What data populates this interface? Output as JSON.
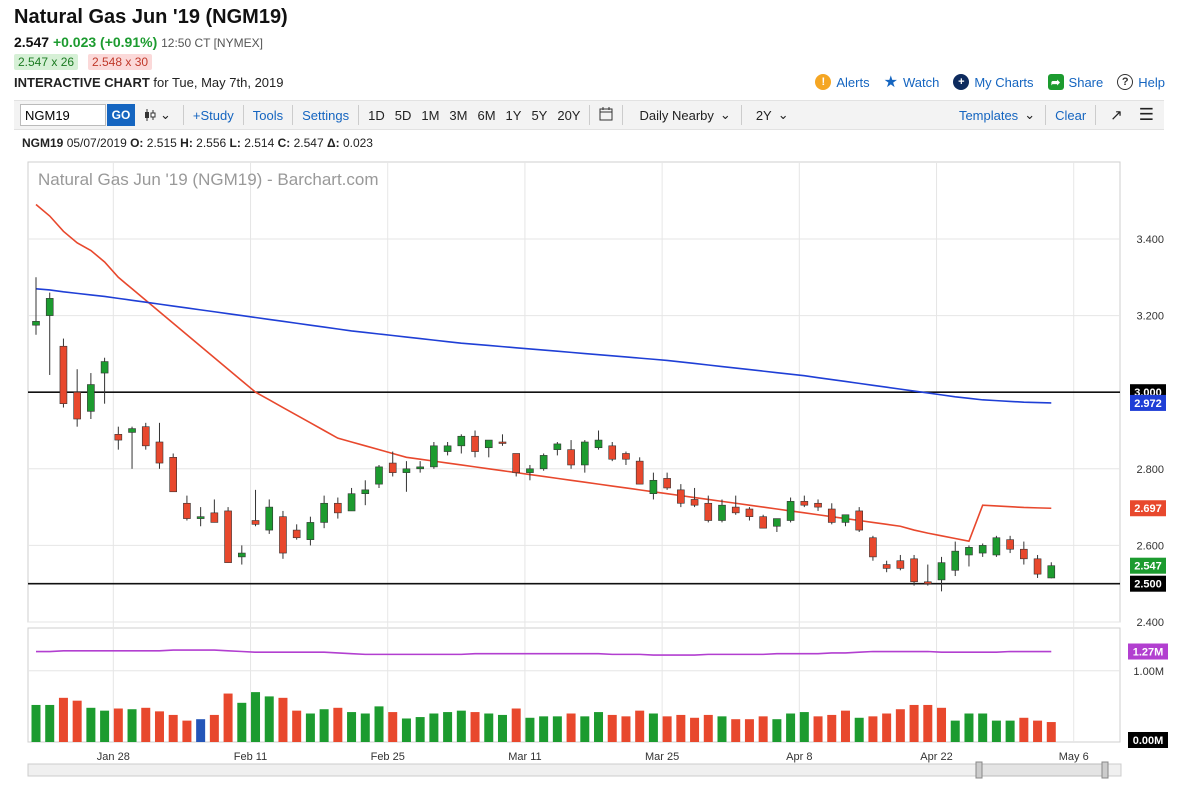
{
  "header": {
    "title": "Natural Gas Jun '19 (NGM19)",
    "last": "2.547",
    "change": "+0.023 (+0.91%)",
    "time": "12:50 CT [NYMEX]",
    "bid": "2.547 x 26",
    "ask": "2.548 x 30",
    "ic_label": "INTERACTIVE CHART",
    "ic_date": "for Tue, May 7th, 2019"
  },
  "links": {
    "alerts": "Alerts",
    "watch": "Watch",
    "mycharts": "My Charts",
    "share": "Share",
    "help": "Help"
  },
  "toolbar": {
    "symbol": "NGM19",
    "go": "GO",
    "study": "+Study",
    "tools": "Tools",
    "settings": "Settings",
    "periods": [
      "1D",
      "5D",
      "1M",
      "3M",
      "6M",
      "1Y",
      "5Y",
      "20Y"
    ],
    "interval": "Daily Nearby",
    "range": "2Y",
    "templates": "Templates",
    "clear": "Clear"
  },
  "ohlc": {
    "symbol": "NGM19",
    "date": "05/07/2019",
    "o_label": "O:",
    "o": "2.515",
    "h_label": "H:",
    "h": "2.556",
    "l_label": "L:",
    "l": "2.514",
    "c_label": "C:",
    "c": "2.547",
    "d_label": "Δ:",
    "d": "0.023"
  },
  "chart_data": {
    "type": "candlestick",
    "title": "Natural Gas Jun '19 (NGM19) - Barchart.com",
    "ylim": [
      2.38,
      3.5
    ],
    "y_ticks": [
      "3.400",
      "3.200",
      "2.800",
      "2.600",
      "2.400"
    ],
    "x_ticks": [
      "Jan 28",
      "Feb 11",
      "Feb 25",
      "Mar 11",
      "Mar 25",
      "Apr 8",
      "Apr 22",
      "May 6"
    ],
    "x_tick_index": [
      6,
      16,
      26,
      36,
      46,
      56,
      66,
      76
    ],
    "candles": [
      {
        "o": 3.175,
        "h": 3.3,
        "l": 3.15,
        "c": 3.185
      },
      {
        "o": 3.2,
        "h": 3.26,
        "l": 3.045,
        "c": 3.245
      },
      {
        "o": 3.12,
        "h": 3.14,
        "l": 2.96,
        "c": 2.97
      },
      {
        "o": 3.0,
        "h": 3.06,
        "l": 2.91,
        "c": 2.93
      },
      {
        "o": 2.95,
        "h": 3.05,
        "l": 2.93,
        "c": 3.02
      },
      {
        "o": 3.05,
        "h": 3.09,
        "l": 2.97,
        "c": 3.08
      },
      {
        "o": 2.89,
        "h": 2.91,
        "l": 2.85,
        "c": 2.875
      },
      {
        "o": 2.895,
        "h": 2.91,
        "l": 2.8,
        "c": 2.905
      },
      {
        "o": 2.91,
        "h": 2.92,
        "l": 2.85,
        "c": 2.86
      },
      {
        "o": 2.87,
        "h": 2.92,
        "l": 2.8,
        "c": 2.815
      },
      {
        "o": 2.83,
        "h": 2.84,
        "l": 2.74,
        "c": 2.74
      },
      {
        "o": 2.71,
        "h": 2.73,
        "l": 2.665,
        "c": 2.67
      },
      {
        "o": 2.67,
        "h": 2.7,
        "l": 2.65,
        "c": 2.675
      },
      {
        "o": 2.685,
        "h": 2.72,
        "l": 2.66,
        "c": 2.66
      },
      {
        "o": 2.69,
        "h": 2.7,
        "l": 2.555,
        "c": 2.555
      },
      {
        "o": 2.57,
        "h": 2.6,
        "l": 2.55,
        "c": 2.58
      },
      {
        "o": 2.665,
        "h": 2.745,
        "l": 2.65,
        "c": 2.655
      },
      {
        "o": 2.64,
        "h": 2.72,
        "l": 2.63,
        "c": 2.7
      },
      {
        "o": 2.675,
        "h": 2.69,
        "l": 2.565,
        "c": 2.58
      },
      {
        "o": 2.64,
        "h": 2.655,
        "l": 2.615,
        "c": 2.62
      },
      {
        "o": 2.615,
        "h": 2.675,
        "l": 2.6,
        "c": 2.66
      },
      {
        "o": 2.66,
        "h": 2.73,
        "l": 2.645,
        "c": 2.71
      },
      {
        "o": 2.71,
        "h": 2.725,
        "l": 2.67,
        "c": 2.685
      },
      {
        "o": 2.69,
        "h": 2.75,
        "l": 2.69,
        "c": 2.735
      },
      {
        "o": 2.735,
        "h": 2.77,
        "l": 2.705,
        "c": 2.745
      },
      {
        "o": 2.76,
        "h": 2.81,
        "l": 2.75,
        "c": 2.805
      },
      {
        "o": 2.815,
        "h": 2.845,
        "l": 2.78,
        "c": 2.79
      },
      {
        "o": 2.79,
        "h": 2.82,
        "l": 2.74,
        "c": 2.8
      },
      {
        "o": 2.8,
        "h": 2.82,
        "l": 2.79,
        "c": 2.805
      },
      {
        "o": 2.805,
        "h": 2.87,
        "l": 2.8,
        "c": 2.86
      },
      {
        "o": 2.845,
        "h": 2.87,
        "l": 2.835,
        "c": 2.86
      },
      {
        "o": 2.86,
        "h": 2.89,
        "l": 2.84,
        "c": 2.885
      },
      {
        "o": 2.885,
        "h": 2.9,
        "l": 2.83,
        "c": 2.845
      },
      {
        "o": 2.855,
        "h": 2.87,
        "l": 2.83,
        "c": 2.875
      },
      {
        "o": 2.87,
        "h": 2.89,
        "l": 2.86,
        "c": 2.868
      },
      {
        "o": 2.84,
        "h": 2.84,
        "l": 2.78,
        "c": 2.79
      },
      {
        "o": 2.79,
        "h": 2.81,
        "l": 2.77,
        "c": 2.8
      },
      {
        "o": 2.8,
        "h": 2.84,
        "l": 2.795,
        "c": 2.835
      },
      {
        "o": 2.85,
        "h": 2.87,
        "l": 2.835,
        "c": 2.865
      },
      {
        "o": 2.85,
        "h": 2.875,
        "l": 2.8,
        "c": 2.81
      },
      {
        "o": 2.81,
        "h": 2.875,
        "l": 2.79,
        "c": 2.87
      },
      {
        "o": 2.855,
        "h": 2.9,
        "l": 2.85,
        "c": 2.875
      },
      {
        "o": 2.86,
        "h": 2.87,
        "l": 2.82,
        "c": 2.825
      },
      {
        "o": 2.84,
        "h": 2.845,
        "l": 2.81,
        "c": 2.825
      },
      {
        "o": 2.82,
        "h": 2.83,
        "l": 2.76,
        "c": 2.76
      },
      {
        "o": 2.735,
        "h": 2.79,
        "l": 2.72,
        "c": 2.77
      },
      {
        "o": 2.775,
        "h": 2.79,
        "l": 2.745,
        "c": 2.75
      },
      {
        "o": 2.745,
        "h": 2.76,
        "l": 2.7,
        "c": 2.71
      },
      {
        "o": 2.72,
        "h": 2.75,
        "l": 2.7,
        "c": 2.705
      },
      {
        "o": 2.71,
        "h": 2.73,
        "l": 2.66,
        "c": 2.665
      },
      {
        "o": 2.665,
        "h": 2.72,
        "l": 2.66,
        "c": 2.705
      },
      {
        "o": 2.7,
        "h": 2.73,
        "l": 2.68,
        "c": 2.685
      },
      {
        "o": 2.695,
        "h": 2.7,
        "l": 2.665,
        "c": 2.675
      },
      {
        "o": 2.675,
        "h": 2.68,
        "l": 2.645,
        "c": 2.645
      },
      {
        "o": 2.65,
        "h": 2.67,
        "l": 2.635,
        "c": 2.67
      },
      {
        "o": 2.665,
        "h": 2.725,
        "l": 2.66,
        "c": 2.715
      },
      {
        "o": 2.715,
        "h": 2.73,
        "l": 2.7,
        "c": 2.705
      },
      {
        "o": 2.71,
        "h": 2.72,
        "l": 2.69,
        "c": 2.7
      },
      {
        "o": 2.695,
        "h": 2.71,
        "l": 2.655,
        "c": 2.66
      },
      {
        "o": 2.66,
        "h": 2.68,
        "l": 2.65,
        "c": 2.68
      },
      {
        "o": 2.69,
        "h": 2.7,
        "l": 2.635,
        "c": 2.64
      },
      {
        "o": 2.62,
        "h": 2.625,
        "l": 2.56,
        "c": 2.57
      },
      {
        "o": 2.55,
        "h": 2.56,
        "l": 2.53,
        "c": 2.54
      },
      {
        "o": 2.56,
        "h": 2.575,
        "l": 2.535,
        "c": 2.54
      },
      {
        "o": 2.565,
        "h": 2.575,
        "l": 2.495,
        "c": 2.505
      },
      {
        "o": 2.505,
        "h": 2.55,
        "l": 2.495,
        "c": 2.5
      },
      {
        "o": 2.51,
        "h": 2.57,
        "l": 2.48,
        "c": 2.555
      },
      {
        "o": 2.535,
        "h": 2.61,
        "l": 2.52,
        "c": 2.585
      },
      {
        "o": 2.575,
        "h": 2.6,
        "l": 2.545,
        "c": 2.595
      },
      {
        "o": 2.58,
        "h": 2.605,
        "l": 2.57,
        "c": 2.6
      },
      {
        "o": 2.575,
        "h": 2.625,
        "l": 2.57,
        "c": 2.62
      },
      {
        "o": 2.615,
        "h": 2.625,
        "l": 2.58,
        "c": 2.59
      },
      {
        "o": 2.59,
        "h": 2.61,
        "l": 2.55,
        "c": 2.565
      },
      {
        "o": 2.565,
        "h": 2.575,
        "l": 2.515,
        "c": 2.525
      },
      {
        "o": 2.515,
        "h": 2.556,
        "l": 2.514,
        "c": 2.547
      }
    ],
    "series": [
      {
        "name": "",
        "color": "#e8482d",
        "values": [
          3.49,
          3.46,
          3.42,
          3.39,
          3.37,
          3.34,
          3.3,
          3.27,
          3.24,
          3.21,
          3.18,
          3.15,
          3.12,
          3.09,
          3.06,
          3.03,
          3.0,
          2.98,
          2.96,
          2.94,
          2.92,
          2.9,
          2.88,
          2.87,
          2.86,
          2.85,
          2.84,
          2.83,
          2.825,
          2.82,
          2.815,
          2.81,
          2.805,
          2.8,
          2.795,
          2.79,
          2.785,
          2.78,
          2.775,
          2.77,
          2.765,
          2.76,
          2.755,
          2.75,
          2.745,
          2.74,
          2.735,
          2.73,
          2.725,
          2.72,
          2.715,
          2.71,
          2.705,
          2.7,
          2.695,
          2.69,
          2.685,
          2.68,
          2.675,
          2.67,
          2.665,
          2.66,
          2.655,
          2.65,
          2.64,
          2.632,
          2.625,
          2.618,
          2.611,
          2.705,
          2.703,
          2.701,
          2.699,
          2.698,
          2.697
        ]
      },
      {
        "name": "",
        "color": "#1f3fd6",
        "values": [
          3.27,
          3.267,
          3.262,
          3.258,
          3.254,
          3.25,
          3.245,
          3.24,
          3.235,
          3.23,
          3.225,
          3.22,
          3.215,
          3.21,
          3.205,
          3.2,
          3.195,
          3.19,
          3.185,
          3.18,
          3.175,
          3.17,
          3.165,
          3.16,
          3.156,
          3.152,
          3.148,
          3.144,
          3.14,
          3.136,
          3.132,
          3.128,
          3.125,
          3.122,
          3.119,
          3.116,
          3.113,
          3.11,
          3.107,
          3.104,
          3.101,
          3.098,
          3.095,
          3.092,
          3.089,
          3.086,
          3.083,
          3.079,
          3.075,
          3.071,
          3.067,
          3.063,
          3.059,
          3.055,
          3.051,
          3.047,
          3.043,
          3.038,
          3.033,
          3.028,
          3.023,
          3.018,
          3.013,
          3.008,
          3.003,
          2.998,
          2.993,
          2.988,
          2.984,
          2.98,
          2.978,
          2.976,
          2.974,
          2.973,
          2.972
        ]
      }
    ],
    "horizontal_lines": [
      3.0,
      2.5
    ],
    "price_labels": [
      {
        "text": "3.000",
        "value": 3.0,
        "bg": "#000000"
      },
      {
        "text": "2.972",
        "value": 2.972,
        "bg": "#1f3fd6"
      },
      {
        "text": "2.697",
        "value": 2.697,
        "bg": "#e8482d"
      },
      {
        "text": "2.547",
        "value": 2.547,
        "bg": "#1c9b2f"
      },
      {
        "text": "2.500",
        "value": 2.5,
        "bg": "#000000"
      }
    ],
    "volume": {
      "ylim": [
        0,
        2.0
      ],
      "tick_labels": [
        "1.27M",
        "1.00M",
        "0.00M"
      ],
      "tick_values": [
        1.27,
        1.0,
        0.0
      ],
      "avg_line": [
        1.27,
        1.27,
        1.28,
        1.28,
        1.28,
        1.28,
        1.28,
        1.28,
        1.28,
        1.28,
        1.29,
        1.29,
        1.29,
        1.29,
        1.28,
        1.27,
        1.26,
        1.26,
        1.26,
        1.26,
        1.26,
        1.26,
        1.25,
        1.24,
        1.23,
        1.23,
        1.23,
        1.23,
        1.23,
        1.23,
        1.23,
        1.23,
        1.24,
        1.24,
        1.24,
        1.24,
        1.24,
        1.24,
        1.24,
        1.24,
        1.24,
        1.24,
        1.23,
        1.23,
        1.23,
        1.22,
        1.22,
        1.22,
        1.22,
        1.23,
        1.23,
        1.23,
        1.23,
        1.23,
        1.24,
        1.24,
        1.24,
        1.24,
        1.25,
        1.25,
        1.26,
        1.27,
        1.27,
        1.27,
        1.27,
        1.27,
        1.26,
        1.26,
        1.26,
        1.26,
        1.26,
        1.27,
        1.27,
        1.27,
        1.27
      ],
      "bars": [
        {
          "v": 0.52,
          "c": "g"
        },
        {
          "v": 0.52,
          "c": "g"
        },
        {
          "v": 0.62,
          "c": "r"
        },
        {
          "v": 0.58,
          "c": "r"
        },
        {
          "v": 0.48,
          "c": "g"
        },
        {
          "v": 0.44,
          "c": "g"
        },
        {
          "v": 0.47,
          "c": "r"
        },
        {
          "v": 0.46,
          "c": "g"
        },
        {
          "v": 0.48,
          "c": "r"
        },
        {
          "v": 0.43,
          "c": "r"
        },
        {
          "v": 0.38,
          "c": "r"
        },
        {
          "v": 0.3,
          "c": "r"
        },
        {
          "v": 0.32,
          "c": "b"
        },
        {
          "v": 0.38,
          "c": "r"
        },
        {
          "v": 0.68,
          "c": "r"
        },
        {
          "v": 0.55,
          "c": "g"
        },
        {
          "v": 0.7,
          "c": "g"
        },
        {
          "v": 0.64,
          "c": "g"
        },
        {
          "v": 0.62,
          "c": "r"
        },
        {
          "v": 0.44,
          "c": "r"
        },
        {
          "v": 0.4,
          "c": "g"
        },
        {
          "v": 0.46,
          "c": "g"
        },
        {
          "v": 0.48,
          "c": "r"
        },
        {
          "v": 0.42,
          "c": "g"
        },
        {
          "v": 0.4,
          "c": "g"
        },
        {
          "v": 0.5,
          "c": "g"
        },
        {
          "v": 0.42,
          "c": "r"
        },
        {
          "v": 0.33,
          "c": "g"
        },
        {
          "v": 0.35,
          "c": "g"
        },
        {
          "v": 0.4,
          "c": "g"
        },
        {
          "v": 0.42,
          "c": "g"
        },
        {
          "v": 0.44,
          "c": "g"
        },
        {
          "v": 0.42,
          "c": "r"
        },
        {
          "v": 0.4,
          "c": "g"
        },
        {
          "v": 0.38,
          "c": "g"
        },
        {
          "v": 0.47,
          "c": "r"
        },
        {
          "v": 0.34,
          "c": "g"
        },
        {
          "v": 0.36,
          "c": "g"
        },
        {
          "v": 0.36,
          "c": "g"
        },
        {
          "v": 0.4,
          "c": "r"
        },
        {
          "v": 0.36,
          "c": "g"
        },
        {
          "v": 0.42,
          "c": "g"
        },
        {
          "v": 0.38,
          "c": "r"
        },
        {
          "v": 0.36,
          "c": "r"
        },
        {
          "v": 0.44,
          "c": "r"
        },
        {
          "v": 0.4,
          "c": "g"
        },
        {
          "v": 0.36,
          "c": "r"
        },
        {
          "v": 0.38,
          "c": "r"
        },
        {
          "v": 0.34,
          "c": "r"
        },
        {
          "v": 0.38,
          "c": "r"
        },
        {
          "v": 0.36,
          "c": "g"
        },
        {
          "v": 0.32,
          "c": "r"
        },
        {
          "v": 0.32,
          "c": "r"
        },
        {
          "v": 0.36,
          "c": "r"
        },
        {
          "v": 0.32,
          "c": "g"
        },
        {
          "v": 0.4,
          "c": "g"
        },
        {
          "v": 0.42,
          "c": "g"
        },
        {
          "v": 0.36,
          "c": "r"
        },
        {
          "v": 0.38,
          "c": "r"
        },
        {
          "v": 0.44,
          "c": "r"
        },
        {
          "v": 0.34,
          "c": "g"
        },
        {
          "v": 0.36,
          "c": "r"
        },
        {
          "v": 0.4,
          "c": "r"
        },
        {
          "v": 0.46,
          "c": "r"
        },
        {
          "v": 0.52,
          "c": "r"
        },
        {
          "v": 0.52,
          "c": "r"
        },
        {
          "v": 0.48,
          "c": "r"
        },
        {
          "v": 0.3,
          "c": "g"
        },
        {
          "v": 0.4,
          "c": "g"
        },
        {
          "v": 0.4,
          "c": "g"
        },
        {
          "v": 0.3,
          "c": "g"
        },
        {
          "v": 0.3,
          "c": "g"
        },
        {
          "v": 0.34,
          "c": "r"
        },
        {
          "v": 0.3,
          "c": "r"
        },
        {
          "v": 0.28,
          "c": "r"
        }
      ]
    },
    "colors": {
      "up": "#1c9b2f",
      "down": "#e8482d",
      "neutral": "#2455b8",
      "avg": "#b23fd0"
    }
  }
}
